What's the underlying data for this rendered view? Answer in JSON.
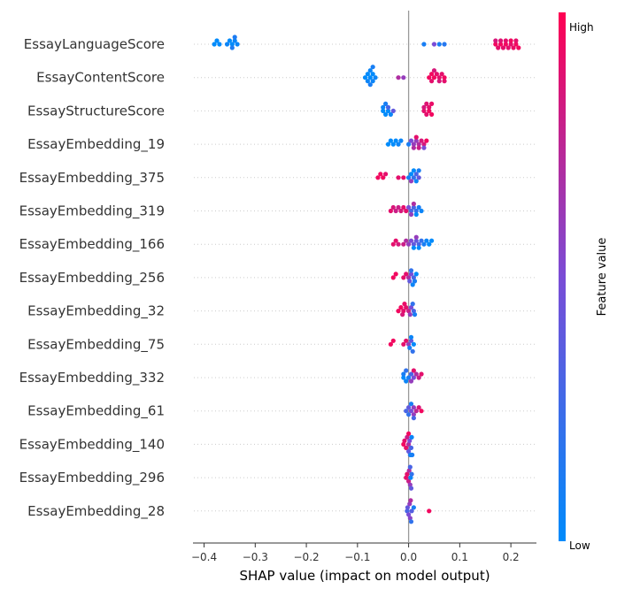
{
  "chart_data": {
    "type": "scatter",
    "subtype": "shap-beeswarm",
    "xlabel": "SHAP value (impact on model output)",
    "xlim": [
      -0.42,
      0.25
    ],
    "xticks": [
      -0.4,
      -0.3,
      -0.2,
      -0.1,
      0.0,
      0.1,
      0.2
    ],
    "xtick_labels": [
      "−0.4",
      "−0.3",
      "−0.2",
      "−0.1",
      "0.0",
      "0.1",
      "0.2"
    ],
    "colorbar": {
      "title": "Feature value",
      "high_label": "High",
      "low_label": "Low",
      "low_color": "#008bfb",
      "mid_color": "#7a4cd6",
      "high_color": "#ff0052"
    },
    "zero_line_color": "#999999",
    "features": [
      {
        "name": "EssayLanguageScore",
        "points": [
          [
            -0.38,
            0.0
          ],
          [
            -0.375,
            0.0
          ],
          [
            -0.37,
            0.0
          ],
          [
            -0.35,
            0.0
          ],
          [
            -0.345,
            0.0
          ],
          [
            -0.34,
            0.05
          ],
          [
            -0.355,
            0.05
          ],
          [
            -0.345,
            0.12
          ],
          [
            -0.34,
            0.12
          ],
          [
            -0.335,
            0.05
          ],
          [
            0.03,
            0.1
          ],
          [
            0.06,
            0.1
          ],
          [
            0.07,
            0.15
          ],
          [
            0.05,
            0.5
          ],
          [
            0.17,
            0.95
          ],
          [
            0.18,
            0.95
          ],
          [
            0.19,
            0.95
          ],
          [
            0.2,
            0.9
          ],
          [
            0.21,
            0.95
          ],
          [
            0.175,
            0.9
          ],
          [
            0.185,
            0.9
          ],
          [
            0.195,
            0.9
          ],
          [
            0.205,
            0.92
          ],
          [
            0.215,
            0.95
          ],
          [
            0.17,
            0.85
          ],
          [
            0.18,
            0.88
          ],
          [
            0.19,
            0.9
          ],
          [
            0.2,
            0.95
          ],
          [
            0.21,
            0.9
          ]
        ]
      },
      {
        "name": "EssayContentScore",
        "points": [
          [
            -0.085,
            0.0
          ],
          [
            -0.08,
            0.0
          ],
          [
            -0.075,
            0.0
          ],
          [
            -0.07,
            0.0
          ],
          [
            -0.065,
            0.05
          ],
          [
            -0.08,
            0.05
          ],
          [
            -0.075,
            0.05
          ],
          [
            -0.07,
            0.05
          ],
          [
            -0.075,
            0.1
          ],
          [
            -0.07,
            0.1
          ],
          [
            -0.02,
            0.7
          ],
          [
            -0.01,
            0.6
          ],
          [
            0.04,
            0.95
          ],
          [
            0.045,
            0.95
          ],
          [
            0.05,
            0.95
          ],
          [
            0.055,
            0.9
          ],
          [
            0.06,
            0.9
          ],
          [
            0.065,
            0.9
          ],
          [
            0.07,
            0.95
          ],
          [
            0.05,
            0.85
          ],
          [
            0.06,
            0.85
          ],
          [
            0.07,
            0.9
          ],
          [
            0.045,
            0.9
          ]
        ]
      },
      {
        "name": "EssayStructureScore",
        "points": [
          [
            -0.05,
            0.0
          ],
          [
            -0.045,
            0.0
          ],
          [
            -0.04,
            0.0
          ],
          [
            -0.035,
            0.05
          ],
          [
            -0.05,
            0.05
          ],
          [
            -0.045,
            0.1
          ],
          [
            -0.04,
            0.3
          ],
          [
            -0.03,
            0.4
          ],
          [
            0.03,
            0.9
          ],
          [
            0.035,
            0.9
          ],
          [
            0.04,
            0.95
          ],
          [
            0.045,
            0.95
          ],
          [
            0.03,
            0.85
          ],
          [
            0.035,
            0.88
          ],
          [
            0.04,
            0.9
          ],
          [
            0.045,
            0.92
          ]
        ]
      },
      {
        "name": "EssayEmbedding_19",
        "points": [
          [
            -0.04,
            0.0
          ],
          [
            -0.035,
            0.0
          ],
          [
            -0.03,
            0.0
          ],
          [
            -0.025,
            0.0
          ],
          [
            -0.02,
            0.05
          ],
          [
            -0.015,
            0.05
          ],
          [
            0.0,
            0.1
          ],
          [
            0.005,
            0.5
          ],
          [
            0.01,
            0.6
          ],
          [
            0.015,
            0.6
          ],
          [
            0.02,
            0.7
          ],
          [
            0.025,
            0.85
          ],
          [
            0.03,
            0.85
          ],
          [
            0.035,
            0.95
          ],
          [
            0.01,
            0.7
          ],
          [
            0.02,
            0.8
          ],
          [
            0.03,
            0.5
          ],
          [
            0.015,
            0.9
          ]
        ]
      },
      {
        "name": "EssayEmbedding_375",
        "points": [
          [
            -0.06,
            0.95
          ],
          [
            -0.055,
            0.95
          ],
          [
            -0.05,
            0.95
          ],
          [
            -0.045,
            0.9
          ],
          [
            -0.02,
            0.9
          ],
          [
            -0.01,
            0.9
          ],
          [
            0.0,
            0.1
          ],
          [
            0.005,
            0.0
          ],
          [
            0.01,
            0.2
          ],
          [
            0.015,
            0.3
          ],
          [
            0.02,
            0.4
          ],
          [
            0.005,
            0.6
          ],
          [
            0.01,
            0.0
          ],
          [
            0.015,
            0.05
          ],
          [
            0.02,
            0.1
          ]
        ]
      },
      {
        "name": "EssayEmbedding_319",
        "points": [
          [
            -0.035,
            0.9
          ],
          [
            -0.03,
            0.85
          ],
          [
            -0.025,
            0.8
          ],
          [
            -0.02,
            0.8
          ],
          [
            -0.015,
            0.85
          ],
          [
            -0.01,
            0.9
          ],
          [
            0.0,
            0.5
          ],
          [
            0.005,
            0.3
          ],
          [
            0.01,
            0.3
          ],
          [
            0.015,
            0.2
          ],
          [
            0.02,
            0.1
          ],
          [
            0.025,
            0.05
          ],
          [
            0.005,
            0.6
          ],
          [
            0.01,
            0.7
          ],
          [
            -0.005,
            0.9
          ],
          [
            0.015,
            0.0
          ]
        ]
      },
      {
        "name": "EssayEmbedding_166",
        "points": [
          [
            -0.03,
            0.9
          ],
          [
            -0.025,
            0.9
          ],
          [
            -0.02,
            0.85
          ],
          [
            -0.01,
            0.8
          ],
          [
            0.0,
            0.6
          ],
          [
            0.005,
            0.5
          ],
          [
            0.01,
            0.4
          ],
          [
            0.015,
            0.4
          ],
          [
            0.02,
            0.3
          ],
          [
            0.025,
            0.2
          ],
          [
            0.03,
            0.1
          ],
          [
            0.035,
            0.05
          ],
          [
            0.04,
            0.0
          ],
          [
            0.045,
            0.0
          ],
          [
            0.01,
            0.0
          ],
          [
            0.02,
            0.0
          ],
          [
            -0.005,
            0.7
          ],
          [
            0.015,
            0.6
          ]
        ]
      },
      {
        "name": "EssayEmbedding_256",
        "points": [
          [
            -0.03,
            0.95
          ],
          [
            -0.025,
            0.95
          ],
          [
            -0.01,
            0.9
          ],
          [
            -0.005,
            0.9
          ],
          [
            0.0,
            0.7
          ],
          [
            0.005,
            0.5
          ],
          [
            0.01,
            0.3
          ],
          [
            0.012,
            0.1
          ],
          [
            0.015,
            0.0
          ],
          [
            0.008,
            0.05
          ],
          [
            0.005,
            0.2
          ],
          [
            0.002,
            0.4
          ]
        ]
      },
      {
        "name": "EssayEmbedding_32",
        "points": [
          [
            -0.02,
            0.95
          ],
          [
            -0.015,
            0.95
          ],
          [
            -0.01,
            0.9
          ],
          [
            -0.005,
            0.9
          ],
          [
            0.0,
            0.8
          ],
          [
            0.005,
            0.5
          ],
          [
            0.01,
            0.3
          ],
          [
            0.012,
            0.1
          ],
          [
            -0.012,
            0.85
          ],
          [
            -0.008,
            0.92
          ],
          [
            0.008,
            0.2
          ],
          [
            0.003,
            0.6
          ]
        ]
      },
      {
        "name": "EssayEmbedding_75",
        "points": [
          [
            -0.035,
            0.95
          ],
          [
            -0.03,
            0.95
          ],
          [
            -0.01,
            0.9
          ],
          [
            -0.005,
            0.9
          ],
          [
            0.0,
            0.6
          ],
          [
            0.005,
            0.4
          ],
          [
            0.008,
            0.2
          ],
          [
            0.01,
            0.0
          ],
          [
            0.005,
            0.05
          ],
          [
            0.002,
            0.1
          ]
        ]
      },
      {
        "name": "EssayEmbedding_332",
        "points": [
          [
            -0.01,
            0.0
          ],
          [
            -0.005,
            0.05
          ],
          [
            0.0,
            0.1
          ],
          [
            0.005,
            0.3
          ],
          [
            0.01,
            0.5
          ],
          [
            0.015,
            0.7
          ],
          [
            0.02,
            0.8
          ],
          [
            0.025,
            0.9
          ],
          [
            -0.005,
            0.2
          ],
          [
            0.005,
            0.6
          ],
          [
            0.01,
            0.9
          ],
          [
            -0.01,
            0.1
          ]
        ]
      },
      {
        "name": "EssayEmbedding_61",
        "points": [
          [
            -0.005,
            0.3
          ],
          [
            0.0,
            0.4
          ],
          [
            0.005,
            0.5
          ],
          [
            0.01,
            0.6
          ],
          [
            0.015,
            0.75
          ],
          [
            0.02,
            0.85
          ],
          [
            0.025,
            0.95
          ],
          [
            0.0,
            0.2
          ],
          [
            0.005,
            0.1
          ],
          [
            0.01,
            0.6
          ],
          [
            0.01,
            0.3
          ]
        ]
      },
      {
        "name": "EssayEmbedding_140",
        "points": [
          [
            -0.01,
            0.95
          ],
          [
            -0.005,
            0.9
          ],
          [
            0.0,
            0.7
          ],
          [
            0.002,
            0.5
          ],
          [
            0.005,
            0.3
          ],
          [
            0.007,
            0.1
          ],
          [
            0.005,
            0.0
          ],
          [
            0.0,
            0.4
          ],
          [
            -0.003,
            0.8
          ],
          [
            0.003,
            0.2
          ],
          [
            -0.008,
            0.9
          ],
          [
            0.006,
            0.05
          ],
          [
            0.0,
            0.95
          ]
        ]
      },
      {
        "name": "EssayEmbedding_296",
        "points": [
          [
            -0.005,
            0.9
          ],
          [
            0.0,
            0.8
          ],
          [
            0.003,
            0.6
          ],
          [
            0.005,
            0.4
          ],
          [
            0.006,
            0.2
          ],
          [
            0.004,
            0.05
          ],
          [
            -0.003,
            0.9
          ],
          [
            0.001,
            0.7
          ],
          [
            0.003,
            0.3
          ]
        ]
      },
      {
        "name": "EssayEmbedding_28",
        "points": [
          [
            -0.003,
            0.3
          ],
          [
            0.0,
            0.5
          ],
          [
            0.002,
            0.6
          ],
          [
            0.004,
            0.7
          ],
          [
            0.005,
            0.2
          ],
          [
            0.01,
            0.1
          ],
          [
            0.04,
            0.95
          ],
          [
            -0.002,
            0.4
          ],
          [
            0.003,
            0.55
          ],
          [
            0.006,
            0.35
          ]
        ]
      }
    ]
  }
}
